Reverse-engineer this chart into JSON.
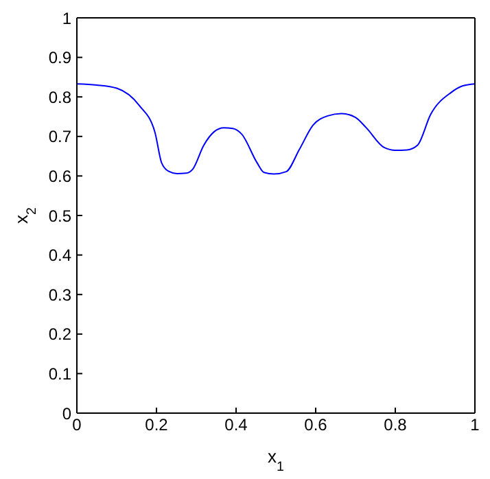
{
  "chart_data": {
    "type": "line",
    "xlabel": "x$_{1}$",
    "ylabel": "x$_{2}$",
    "x": [
      0,
      0.05,
      0.1,
      0.157,
      0.196,
      0.213,
      0.23,
      0.252,
      0.275,
      0.291,
      0.319,
      0.345,
      0.369,
      0.392,
      0.414,
      0.453,
      0.47,
      0.495,
      0.526,
      0.559,
      0.593,
      0.63,
      0.665,
      0.7,
      0.727,
      0.772,
      0.8,
      0.83,
      0.856,
      0.889,
      0.94,
      0.97,
      1
    ],
    "series": [
      {
        "color": "#0000ff",
        "values": [
          0.833,
          0.83,
          0.822,
          0.778,
          0.711,
          0.633,
          0.612,
          0.606,
          0.607,
          0.617,
          0.678,
          0.712,
          0.722,
          0.72,
          0.706,
          0.633,
          0.609,
          0.605,
          0.611,
          0.667,
          0.728,
          0.752,
          0.758,
          0.748,
          0.722,
          0.672,
          0.665,
          0.666,
          0.678,
          0.756,
          0.811,
          0.828,
          0.833
        ]
      }
    ],
    "xlim": [
      0,
      1
    ],
    "ylim": [
      0,
      1
    ],
    "xticks": [
      0,
      0.2,
      0.4,
      0.6,
      0.8,
      1
    ],
    "yticks": [
      0,
      0.1,
      0.2,
      0.3,
      0.4,
      0.5,
      0.6,
      0.7,
      0.8,
      0.9,
      1
    ],
    "grid": false,
    "legend": false,
    "marker": "none",
    "line_style": "solid"
  }
}
